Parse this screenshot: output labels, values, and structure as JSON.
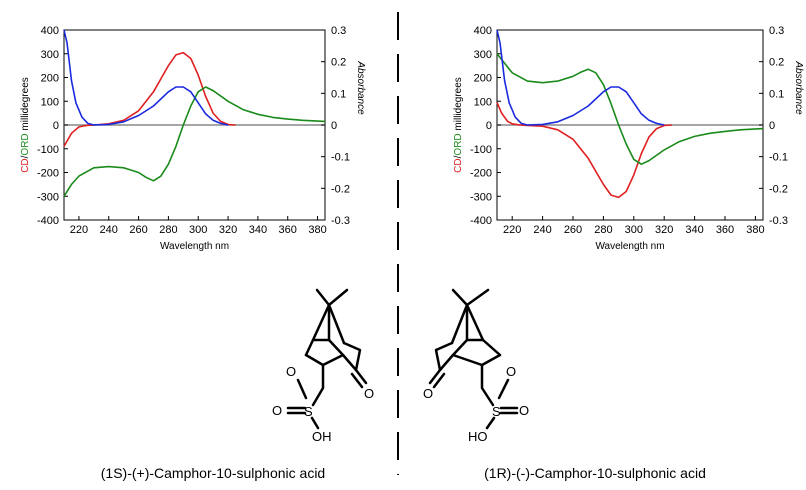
{
  "chart_data": [
    {
      "type": "line",
      "id": "left",
      "xlabel": "Wavelength nm",
      "ylabel_parts": [
        {
          "text": "CD",
          "color": "#e02020"
        },
        {
          "text": "/",
          "color": "#000000"
        },
        {
          "text": "ORD",
          "color": "#1a8a1a"
        },
        {
          "text": " millidegrees",
          "color": "#000000"
        }
      ],
      "y2label": "Absorbance",
      "xlim": [
        210,
        385
      ],
      "ylim": [
        -400,
        400
      ],
      "y2lim": [
        -0.3,
        0.3
      ],
      "xticks": [
        220,
        240,
        260,
        280,
        300,
        320,
        340,
        360,
        380
      ],
      "yticks": [
        400,
        300,
        200,
        100,
        0,
        -100,
        -200,
        -300,
        -400
      ],
      "y2ticks": [
        "0.3",
        "0.2",
        "0.1",
        "0",
        "-0.1",
        "-0.2",
        "-0.3"
      ],
      "grid": false,
      "series": [
        {
          "color": "#e02020",
          "axis": "y1",
          "x": [
            210,
            215,
            220,
            225,
            230,
            240,
            250,
            260,
            270,
            280,
            285,
            290,
            295,
            300,
            305,
            310,
            315,
            320,
            325
          ],
          "y": [
            -90,
            -35,
            -8,
            -2,
            0,
            5,
            20,
            60,
            140,
            250,
            295,
            305,
            280,
            210,
            120,
            50,
            15,
            2,
            0
          ]
        },
        {
          "color": "#1a8a1a",
          "axis": "y1",
          "x": [
            210,
            215,
            220,
            230,
            240,
            250,
            260,
            265,
            270,
            275,
            280,
            285,
            290,
            295,
            300,
            305,
            310,
            320,
            330,
            340,
            350,
            360,
            370,
            385
          ],
          "y": [
            -300,
            -250,
            -215,
            -180,
            -175,
            -180,
            -200,
            -220,
            -235,
            -215,
            -165,
            -90,
            0,
            80,
            140,
            160,
            145,
            100,
            65,
            45,
            32,
            25,
            20,
            15
          ]
        },
        {
          "color": "#1a2adf",
          "axis": "y2",
          "x": [
            210,
            212,
            215,
            218,
            222,
            226,
            230,
            240,
            250,
            260,
            270,
            280,
            285,
            290,
            295,
            300,
            305,
            310,
            315,
            320
          ],
          "y": [
            0.3,
            0.26,
            0.14,
            0.07,
            0.025,
            0.005,
            0.0,
            0.002,
            0.01,
            0.03,
            0.06,
            0.105,
            0.12,
            0.12,
            0.105,
            0.07,
            0.035,
            0.015,
            0.005,
            0.0
          ]
        }
      ]
    },
    {
      "type": "line",
      "id": "right",
      "xlabel": "Wavelength nm",
      "ylabel_parts": [
        {
          "text": "CD",
          "color": "#e02020"
        },
        {
          "text": "/",
          "color": "#000000"
        },
        {
          "text": "ORD",
          "color": "#1a8a1a"
        },
        {
          "text": " millidegrees",
          "color": "#000000"
        }
      ],
      "y2label": "Absorbance",
      "xlim": [
        210,
        385
      ],
      "ylim": [
        -400,
        400
      ],
      "y2lim": [
        -0.3,
        0.3
      ],
      "xticks": [
        220,
        240,
        260,
        280,
        300,
        320,
        340,
        360,
        380
      ],
      "yticks": [
        400,
        300,
        200,
        100,
        0,
        -100,
        -200,
        -300,
        -400
      ],
      "y2ticks": [
        "0.3",
        "0.2",
        "0.1",
        "0",
        "-0.1",
        "-0.2",
        "-0.3"
      ],
      "grid": false,
      "series": [
        {
          "color": "#e02020",
          "axis": "y1",
          "x": [
            210,
            213,
            217,
            220,
            225,
            230,
            240,
            250,
            260,
            270,
            280,
            285,
            290,
            295,
            300,
            305,
            310,
            315,
            320,
            325
          ],
          "y": [
            95,
            50,
            15,
            5,
            0,
            -2,
            -5,
            -20,
            -60,
            -140,
            -250,
            -295,
            -305,
            -280,
            -210,
            -120,
            -50,
            -15,
            -2,
            0
          ]
        },
        {
          "color": "#1a8a1a",
          "axis": "y1",
          "x": [
            210,
            215,
            220,
            230,
            240,
            250,
            260,
            265,
            270,
            275,
            280,
            285,
            290,
            295,
            300,
            305,
            310,
            320,
            330,
            340,
            350,
            360,
            370,
            385
          ],
          "y": [
            300,
            260,
            220,
            185,
            178,
            185,
            205,
            222,
            235,
            220,
            170,
            90,
            0,
            -80,
            -145,
            -165,
            -150,
            -105,
            -70,
            -48,
            -35,
            -27,
            -20,
            -15
          ]
        },
        {
          "color": "#1a2adf",
          "axis": "y2",
          "x": [
            210,
            212,
            215,
            218,
            222,
            226,
            230,
            240,
            250,
            260,
            270,
            280,
            285,
            290,
            295,
            300,
            305,
            310,
            315,
            320
          ],
          "y": [
            0.3,
            0.26,
            0.14,
            0.07,
            0.025,
            0.005,
            0.0,
            0.002,
            0.01,
            0.03,
            0.06,
            0.105,
            0.12,
            0.12,
            0.105,
            0.07,
            0.035,
            0.015,
            0.005,
            0.0
          ]
        }
      ]
    }
  ],
  "structures": {
    "left": {
      "caption": "(1S)-(+)-Camphor-10-sulphonic acid",
      "atoms": {
        "o_ring": "O",
        "s": "S",
        "o_ketone": "O",
        "o_left": "O",
        "oh": "OH"
      }
    },
    "right": {
      "caption": "(1R)-(-)-Camphor-10-sulphonic acid",
      "atoms": {
        "o_ring": "O",
        "s": "S",
        "o_ketone": "O",
        "o_right": "O",
        "oh": "HO"
      }
    }
  }
}
